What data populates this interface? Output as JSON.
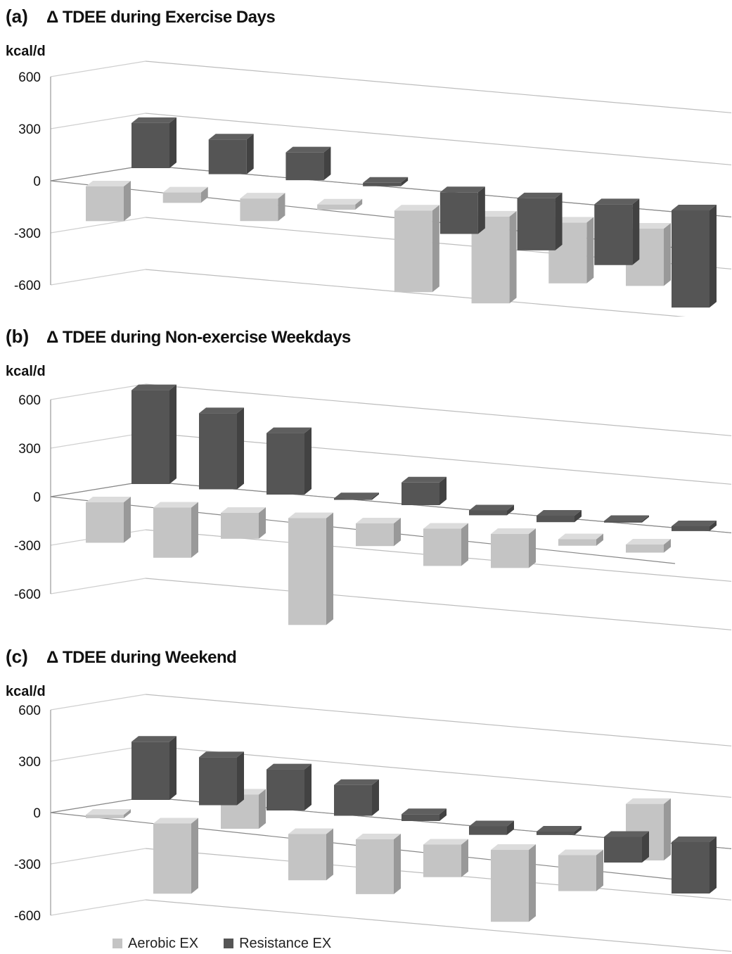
{
  "chart_data": [
    {
      "panel": "(a)",
      "type": "bar",
      "title": "Δ TDEE during Exercise Days",
      "ylabel": "kcal/d",
      "yticks": [
        600,
        300,
        0,
        -300,
        -600
      ],
      "ylim": [
        -600,
        600
      ],
      "series": [
        {
          "name": "Aerobic EX",
          "values": [
            -200,
            -60,
            -130,
            -30,
            -470,
            -500,
            -350,
            -330
          ]
        },
        {
          "name": "Resistance EX",
          "values": [
            260,
            200,
            160,
            20,
            -240,
            -300,
            -350,
            -560
          ]
        }
      ]
    },
    {
      "panel": "(b)",
      "type": "bar",
      "title": "Δ TDEE during Non-exercise Weekdays",
      "ylabel": "kcal/d",
      "yticks": [
        600,
        300,
        0,
        -300,
        -600
      ],
      "ylim": [
        -600,
        600
      ],
      "series": [
        {
          "name": "Aerobic EX",
          "values": [
            -250,
            -310,
            -160,
            -660,
            -140,
            -230,
            -210,
            -40,
            -50
          ]
        },
        {
          "name": "Resistance EX",
          "values": [
            580,
            470,
            380,
            10,
            140,
            -30,
            -40,
            -10,
            -30
          ]
        }
      ]
    },
    {
      "panel": "(c)",
      "type": "bar",
      "title": "Δ TDEE during Weekend",
      "ylabel": "kcal/d",
      "yticks": [
        600,
        300,
        0,
        -300,
        -600
      ],
      "ylim": [
        -600,
        600
      ],
      "series": [
        {
          "name": "Aerobic EX",
          "values": [
            20,
            -410,
            200,
            -270,
            -320,
            -190,
            -420,
            -210,
            330
          ]
        },
        {
          "name": "Resistance EX",
          "values": [
            340,
            280,
            240,
            180,
            40,
            -50,
            -20,
            -150,
            -300
          ]
        }
      ]
    }
  ],
  "legend": [
    {
      "label": "Aerobic EX",
      "color": "#c4c4c4"
    },
    {
      "label": "Resistance EX",
      "color": "#555555"
    }
  ]
}
